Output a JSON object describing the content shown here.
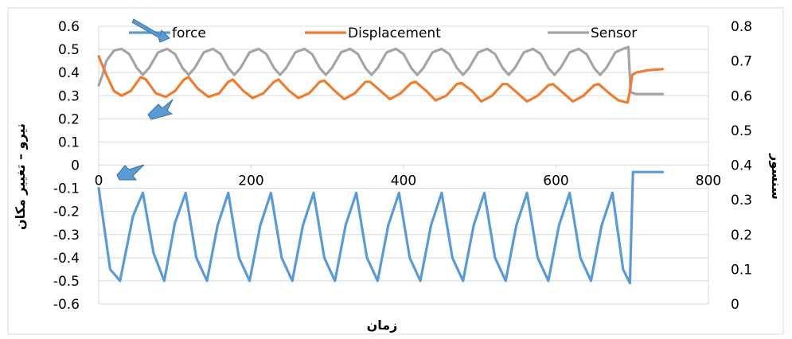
{
  "chart_data": {
    "type": "line",
    "xlabel": "زمان",
    "ylabel_left": "نیرو – تغییر مکان",
    "ylabel_right": "سنسور",
    "xlim": [
      0,
      800
    ],
    "ylim_left": [
      -0.6,
      0.6
    ],
    "ylim_right": [
      0,
      0.8
    ],
    "x_ticks": [
      0,
      200,
      400,
      600,
      800
    ],
    "y_left_ticks": [
      -0.6,
      -0.5,
      -0.4,
      -0.3,
      -0.2,
      -0.1,
      0,
      0.1,
      0.2,
      0.3,
      0.4,
      0.5,
      0.6
    ],
    "y_right_ticks": [
      0,
      0.1,
      0.2,
      0.3,
      0.4,
      0.5,
      0.6,
      0.7,
      0.8
    ],
    "x_tick_labels": [
      "0",
      "200",
      "400",
      "600",
      "800"
    ],
    "y_left_tick_labels": [
      "-0.6",
      "-0.5",
      "-0.4",
      "-0.3",
      "-0.2",
      "-0.1",
      "0",
      "0.1",
      "0.2",
      "0.3",
      "0.4",
      "0.5",
      "0.6"
    ],
    "y_right_tick_labels": [
      "0",
      "0.1",
      "0.2",
      "0.3",
      "0.4",
      "0.5",
      "0.6",
      "0.7",
      "0.8"
    ],
    "grid": "horizontal",
    "legend_position": "top",
    "series": [
      {
        "name": "force",
        "axis": "left",
        "color": "#5B9BD5",
        "points": [
          [
            0,
            -0.1
          ],
          [
            15,
            -0.45
          ],
          [
            28,
            -0.5
          ],
          [
            45,
            -0.22
          ],
          [
            58,
            -0.12
          ],
          [
            72,
            -0.38
          ],
          [
            86,
            -0.5
          ],
          [
            100,
            -0.25
          ],
          [
            114,
            -0.12
          ],
          [
            128,
            -0.4
          ],
          [
            142,
            -0.5
          ],
          [
            156,
            -0.26
          ],
          [
            170,
            -0.12
          ],
          [
            184,
            -0.4
          ],
          [
            198,
            -0.5
          ],
          [
            212,
            -0.26
          ],
          [
            226,
            -0.12
          ],
          [
            240,
            -0.4
          ],
          [
            254,
            -0.5
          ],
          [
            268,
            -0.26
          ],
          [
            282,
            -0.12
          ],
          [
            296,
            -0.4
          ],
          [
            310,
            -0.5
          ],
          [
            324,
            -0.26
          ],
          [
            338,
            -0.12
          ],
          [
            352,
            -0.4
          ],
          [
            366,
            -0.5
          ],
          [
            380,
            -0.26
          ],
          [
            394,
            -0.12
          ],
          [
            408,
            -0.4
          ],
          [
            422,
            -0.5
          ],
          [
            436,
            -0.26
          ],
          [
            450,
            -0.12
          ],
          [
            464,
            -0.4
          ],
          [
            478,
            -0.5
          ],
          [
            492,
            -0.26
          ],
          [
            506,
            -0.12
          ],
          [
            520,
            -0.4
          ],
          [
            534,
            -0.5
          ],
          [
            548,
            -0.26
          ],
          [
            562,
            -0.12
          ],
          [
            576,
            -0.4
          ],
          [
            590,
            -0.5
          ],
          [
            604,
            -0.26
          ],
          [
            618,
            -0.12
          ],
          [
            632,
            -0.4
          ],
          [
            646,
            -0.5
          ],
          [
            660,
            -0.26
          ],
          [
            674,
            -0.12
          ],
          [
            688,
            -0.45
          ],
          [
            697,
            -0.51
          ],
          [
            701,
            -0.03
          ],
          [
            710,
            -0.03
          ],
          [
            725,
            -0.03
          ],
          [
            740,
            -0.03
          ]
        ]
      },
      {
        "name": "Displacement",
        "axis": "left",
        "color": "#ED7D31",
        "points": [
          [
            0,
            0.47
          ],
          [
            10,
            0.39
          ],
          [
            20,
            0.32
          ],
          [
            30,
            0.3
          ],
          [
            42,
            0.32
          ],
          [
            55,
            0.38
          ],
          [
            62,
            0.37
          ],
          [
            75,
            0.31
          ],
          [
            88,
            0.295
          ],
          [
            100,
            0.32
          ],
          [
            112,
            0.37
          ],
          [
            118,
            0.38
          ],
          [
            130,
            0.33
          ],
          [
            144,
            0.295
          ],
          [
            158,
            0.31
          ],
          [
            170,
            0.36
          ],
          [
            176,
            0.37
          ],
          [
            190,
            0.32
          ],
          [
            202,
            0.29
          ],
          [
            216,
            0.31
          ],
          [
            230,
            0.36
          ],
          [
            236,
            0.37
          ],
          [
            250,
            0.32
          ],
          [
            262,
            0.29
          ],
          [
            276,
            0.31
          ],
          [
            290,
            0.36
          ],
          [
            296,
            0.365
          ],
          [
            310,
            0.32
          ],
          [
            322,
            0.285
          ],
          [
            336,
            0.31
          ],
          [
            350,
            0.36
          ],
          [
            356,
            0.36
          ],
          [
            370,
            0.32
          ],
          [
            382,
            0.285
          ],
          [
            396,
            0.31
          ],
          [
            410,
            0.355
          ],
          [
            416,
            0.36
          ],
          [
            430,
            0.32
          ],
          [
            442,
            0.28
          ],
          [
            456,
            0.3
          ],
          [
            470,
            0.35
          ],
          [
            476,
            0.355
          ],
          [
            490,
            0.32
          ],
          [
            502,
            0.275
          ],
          [
            516,
            0.3
          ],
          [
            530,
            0.35
          ],
          [
            536,
            0.35
          ],
          [
            550,
            0.31
          ],
          [
            562,
            0.275
          ],
          [
            576,
            0.3
          ],
          [
            590,
            0.345
          ],
          [
            596,
            0.35
          ],
          [
            610,
            0.31
          ],
          [
            622,
            0.275
          ],
          [
            636,
            0.3
          ],
          [
            650,
            0.345
          ],
          [
            656,
            0.35
          ],
          [
            670,
            0.31
          ],
          [
            682,
            0.28
          ],
          [
            694,
            0.27
          ],
          [
            697,
            0.32
          ],
          [
            700,
            0.39
          ],
          [
            705,
            0.4
          ],
          [
            720,
            0.41
          ],
          [
            740,
            0.415
          ]
        ]
      },
      {
        "name": "Sensor",
        "axis": "right",
        "color": "#A5A5A5",
        "points": [
          [
            0,
            0.63
          ],
          [
            5,
            0.66
          ],
          [
            10,
            0.7
          ],
          [
            20,
            0.73
          ],
          [
            30,
            0.735
          ],
          [
            40,
            0.72
          ],
          [
            50,
            0.68
          ],
          [
            58,
            0.66
          ],
          [
            66,
            0.68
          ],
          [
            78,
            0.725
          ],
          [
            90,
            0.735
          ],
          [
            100,
            0.72
          ],
          [
            110,
            0.68
          ],
          [
            118,
            0.66
          ],
          [
            126,
            0.68
          ],
          [
            138,
            0.725
          ],
          [
            150,
            0.735
          ],
          [
            160,
            0.72
          ],
          [
            170,
            0.68
          ],
          [
            178,
            0.66
          ],
          [
            186,
            0.68
          ],
          [
            198,
            0.725
          ],
          [
            210,
            0.735
          ],
          [
            220,
            0.72
          ],
          [
            230,
            0.68
          ],
          [
            238,
            0.66
          ],
          [
            246,
            0.68
          ],
          [
            258,
            0.725
          ],
          [
            270,
            0.735
          ],
          [
            280,
            0.72
          ],
          [
            290,
            0.68
          ],
          [
            298,
            0.66
          ],
          [
            306,
            0.68
          ],
          [
            318,
            0.725
          ],
          [
            330,
            0.735
          ],
          [
            340,
            0.72
          ],
          [
            350,
            0.68
          ],
          [
            358,
            0.66
          ],
          [
            366,
            0.68
          ],
          [
            378,
            0.725
          ],
          [
            390,
            0.735
          ],
          [
            400,
            0.72
          ],
          [
            410,
            0.68
          ],
          [
            418,
            0.66
          ],
          [
            426,
            0.68
          ],
          [
            438,
            0.725
          ],
          [
            450,
            0.735
          ],
          [
            460,
            0.72
          ],
          [
            470,
            0.68
          ],
          [
            478,
            0.66
          ],
          [
            486,
            0.68
          ],
          [
            498,
            0.725
          ],
          [
            510,
            0.735
          ],
          [
            520,
            0.72
          ],
          [
            530,
            0.68
          ],
          [
            538,
            0.66
          ],
          [
            546,
            0.68
          ],
          [
            558,
            0.725
          ],
          [
            570,
            0.735
          ],
          [
            580,
            0.72
          ],
          [
            590,
            0.68
          ],
          [
            598,
            0.66
          ],
          [
            606,
            0.68
          ],
          [
            618,
            0.725
          ],
          [
            630,
            0.735
          ],
          [
            640,
            0.72
          ],
          [
            650,
            0.68
          ],
          [
            658,
            0.66
          ],
          [
            666,
            0.68
          ],
          [
            678,
            0.725
          ],
          [
            688,
            0.735
          ],
          [
            695,
            0.74
          ],
          [
            698,
            0.61
          ],
          [
            705,
            0.605
          ],
          [
            720,
            0.605
          ],
          [
            740,
            0.605
          ]
        ]
      }
    ]
  }
}
